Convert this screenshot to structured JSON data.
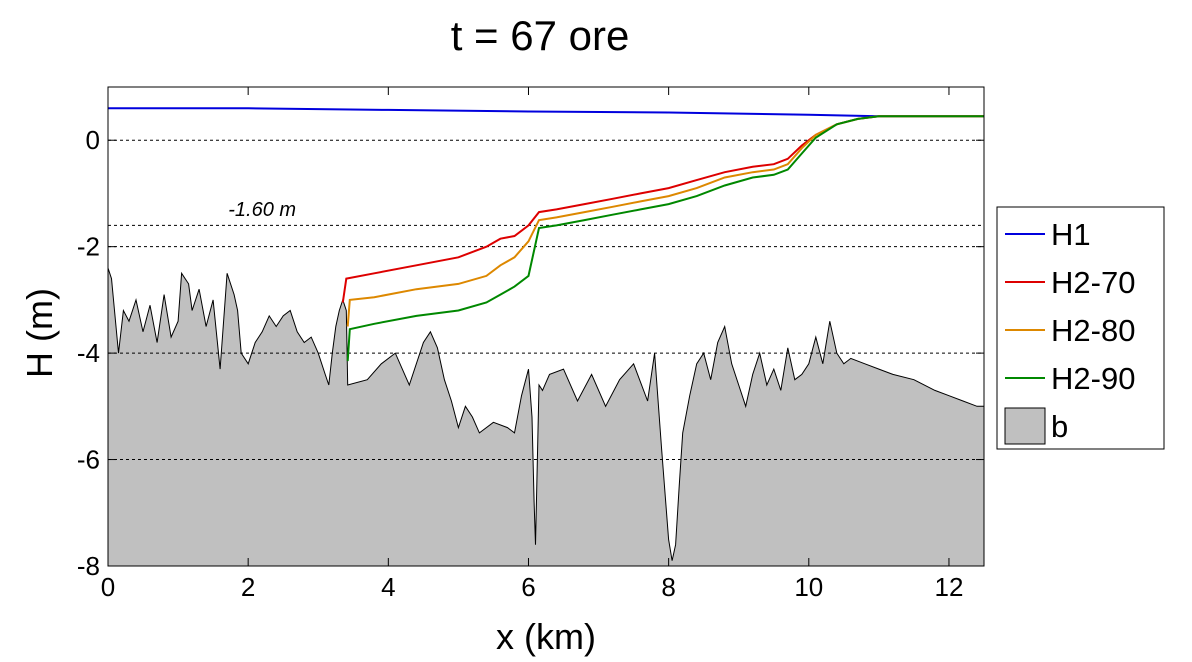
{
  "chart_data": {
    "type": "line",
    "title": "t = 67 ore",
    "xlabel": "x (km)",
    "ylabel": "H (m)",
    "xlim": [
      0,
      12.5
    ],
    "ylim": [
      -8,
      1
    ],
    "xticks": [
      0,
      2,
      4,
      6,
      8,
      10,
      12
    ],
    "yticks": [
      -8,
      -6,
      -4,
      -2,
      0
    ],
    "grid": "dotted reference lines only",
    "reference_lines": [
      0,
      -1.6,
      -2,
      -4,
      -6
    ],
    "annotations": [
      {
        "text": "-1.60 m",
        "x": 2.2,
        "y": -1.42
      }
    ],
    "legend": {
      "placement": "outside-right"
    },
    "series": [
      {
        "name": "H1",
        "kind": "line",
        "color": "#0000dd",
        "x": [
          0,
          2,
          4,
          6,
          8,
          10,
          11,
          11.3,
          12.5
        ],
        "y": [
          0.6,
          0.6,
          0.57,
          0.54,
          0.52,
          0.48,
          0.45,
          0.45,
          0.45
        ]
      },
      {
        "name": "H2-70",
        "kind": "line",
        "color": "#dd0000",
        "x": [
          3.35,
          3.4,
          3.8,
          4.4,
          5.0,
          5.4,
          5.6,
          5.8,
          6.0,
          6.15,
          6.4,
          6.8,
          7.2,
          7.6,
          8.0,
          8.4,
          8.8,
          9.2,
          9.5,
          9.7,
          9.9,
          10.1,
          10.4,
          10.7,
          11.0,
          11.3,
          12.5
        ],
        "y": [
          -3.05,
          -2.6,
          -2.5,
          -2.35,
          -2.2,
          -2.0,
          -1.85,
          -1.8,
          -1.6,
          -1.35,
          -1.3,
          -1.2,
          -1.1,
          -1.0,
          -0.9,
          -0.75,
          -0.6,
          -0.5,
          -0.45,
          -0.35,
          -0.1,
          0.1,
          0.3,
          0.4,
          0.45,
          0.45,
          0.45
        ]
      },
      {
        "name": "H2-80",
        "kind": "line",
        "color": "#dd8800",
        "x": [
          3.42,
          3.45,
          3.8,
          4.4,
          5.0,
          5.4,
          5.6,
          5.8,
          6.0,
          6.15,
          6.4,
          6.8,
          7.2,
          7.6,
          8.0,
          8.4,
          8.8,
          9.2,
          9.5,
          9.7,
          9.9,
          10.1,
          10.4,
          10.7,
          11.0,
          11.3,
          12.5
        ],
        "y": [
          -3.5,
          -3.0,
          -2.95,
          -2.8,
          -2.7,
          -2.55,
          -2.35,
          -2.2,
          -1.9,
          -1.5,
          -1.45,
          -1.35,
          -1.25,
          -1.15,
          -1.05,
          -0.9,
          -0.7,
          -0.6,
          -0.55,
          -0.45,
          -0.15,
          0.1,
          0.3,
          0.4,
          0.45,
          0.45,
          0.45
        ]
      },
      {
        "name": "H2-90",
        "kind": "line",
        "color": "#008800",
        "x": [
          3.42,
          3.45,
          3.8,
          4.4,
          5.0,
          5.4,
          5.6,
          5.8,
          6.0,
          6.15,
          6.4,
          6.8,
          7.2,
          7.6,
          8.0,
          8.4,
          8.8,
          9.2,
          9.5,
          9.7,
          9.9,
          10.1,
          10.4,
          10.7,
          11.0,
          11.3,
          12.5
        ],
        "y": [
          -4.15,
          -3.55,
          -3.45,
          -3.3,
          -3.2,
          -3.05,
          -2.9,
          -2.75,
          -2.55,
          -1.65,
          -1.6,
          -1.5,
          -1.4,
          -1.3,
          -1.2,
          -1.05,
          -0.85,
          -0.7,
          -0.65,
          -0.55,
          -0.25,
          0.05,
          0.3,
          0.4,
          0.45,
          0.45,
          0.45
        ]
      },
      {
        "name": "b",
        "kind": "area",
        "color": "#c0c0c0",
        "x": [
          0,
          0.05,
          0.15,
          0.22,
          0.3,
          0.4,
          0.5,
          0.6,
          0.7,
          0.8,
          0.9,
          1.0,
          1.05,
          1.15,
          1.2,
          1.3,
          1.4,
          1.5,
          1.6,
          1.7,
          1.8,
          1.85,
          1.9,
          2.0,
          2.1,
          2.2,
          2.3,
          2.4,
          2.5,
          2.6,
          2.7,
          2.8,
          2.9,
          3.0,
          3.1,
          3.15,
          3.2,
          3.25,
          3.3,
          3.35,
          3.4,
          3.42,
          3.7,
          3.9,
          4.1,
          4.3,
          4.5,
          4.6,
          4.7,
          4.8,
          4.9,
          5.0,
          5.1,
          5.2,
          5.3,
          5.5,
          5.7,
          5.8,
          5.9,
          6.0,
          6.05,
          6.08,
          6.1,
          6.15,
          6.2,
          6.3,
          6.5,
          6.7,
          6.9,
          7.1,
          7.3,
          7.5,
          7.7,
          7.8,
          7.9,
          8.0,
          8.05,
          8.1,
          8.15,
          8.2,
          8.3,
          8.4,
          8.5,
          8.6,
          8.7,
          8.8,
          8.9,
          9.0,
          9.1,
          9.2,
          9.3,
          9.4,
          9.5,
          9.6,
          9.7,
          9.8,
          9.9,
          10.0,
          10.1,
          10.2,
          10.3,
          10.4,
          10.5,
          10.6,
          10.8,
          11.0,
          11.2,
          11.5,
          11.8,
          12.0,
          12.2,
          12.4,
          12.5
        ],
        "y": [
          -2.4,
          -2.6,
          -4.0,
          -3.2,
          -3.4,
          -3.0,
          -3.6,
          -3.1,
          -3.8,
          -2.9,
          -3.7,
          -3.4,
          -2.5,
          -2.7,
          -3.2,
          -2.8,
          -3.5,
          -3.0,
          -4.3,
          -2.5,
          -2.9,
          -3.2,
          -4.0,
          -4.2,
          -3.8,
          -3.6,
          -3.3,
          -3.5,
          -3.3,
          -3.2,
          -3.6,
          -3.8,
          -3.7,
          -4.0,
          -4.4,
          -4.6,
          -4.0,
          -3.5,
          -3.2,
          -3.0,
          -3.2,
          -4.6,
          -4.5,
          -4.2,
          -4.0,
          -4.6,
          -3.8,
          -3.6,
          -3.9,
          -4.5,
          -4.9,
          -5.4,
          -5.0,
          -5.2,
          -5.5,
          -5.3,
          -5.4,
          -5.5,
          -4.8,
          -4.3,
          -5.2,
          -6.8,
          -7.6,
          -4.6,
          -4.7,
          -4.4,
          -4.3,
          -4.9,
          -4.4,
          -5.0,
          -4.5,
          -4.2,
          -4.9,
          -4.0,
          -5.8,
          -7.5,
          -7.9,
          -7.6,
          -6.5,
          -5.5,
          -4.8,
          -4.2,
          -4.0,
          -4.5,
          -3.8,
          -3.5,
          -4.2,
          -4.6,
          -5.0,
          -4.4,
          -4.0,
          -4.6,
          -4.3,
          -4.7,
          -3.9,
          -4.5,
          -4.4,
          -4.2,
          -3.7,
          -4.2,
          -3.4,
          -4.0,
          -4.2,
          -4.1,
          -4.2,
          -4.3,
          -4.4,
          -4.5,
          -4.7,
          -4.8,
          -4.9,
          -5.0,
          -5.0
        ]
      }
    ]
  }
}
